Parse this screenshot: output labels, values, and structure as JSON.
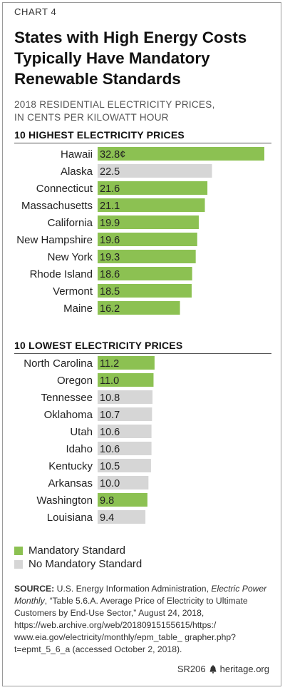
{
  "chart_label": "CHART 4",
  "title": "States with High Energy Costs Typically Have Mandatory Renewable Standards",
  "subtitle_line1": "2018 RESIDENTIAL ELECTRICITY PRICES,",
  "subtitle_line2": "IN CENTS PER KILOWATT HOUR",
  "colors": {
    "mandatory": "#8cc152",
    "none": "#d6d6d6"
  },
  "legend": [
    {
      "label": "Mandatory Standard",
      "color": "#8cc152"
    },
    {
      "label": "No Mandatory Standard",
      "color": "#d6d6d6"
    }
  ],
  "chart_data": [
    {
      "type": "bar",
      "orientation": "horizontal",
      "title": "10 HIGHEST ELECTRICITY PRICES",
      "categories": [
        "Hawaii",
        "Alaska",
        "Connecticut",
        "Massachusetts",
        "California",
        "New Hampshire",
        "New York",
        "Rhode Island",
        "Vermont",
        "Maine"
      ],
      "values": [
        32.8,
        22.5,
        21.6,
        21.1,
        19.9,
        19.6,
        19.3,
        18.6,
        18.5,
        16.2
      ],
      "value_labels": [
        "32.8¢",
        "22.5",
        "21.6",
        "21.1",
        "19.9",
        "19.6",
        "19.3",
        "18.6",
        "18.5",
        "16.2"
      ],
      "mandatory": [
        true,
        false,
        true,
        true,
        true,
        true,
        true,
        true,
        true,
        true
      ],
      "xlim": [
        0,
        32.8
      ]
    },
    {
      "type": "bar",
      "orientation": "horizontal",
      "title": "10 LOWEST ELECTRICITY PRICES",
      "categories": [
        "North Carolina",
        "Oregon",
        "Tennessee",
        "Oklahoma",
        "Utah",
        "Idaho",
        "Kentucky",
        "Arkansas",
        "Washington",
        "Louisiana"
      ],
      "values": [
        11.2,
        11.0,
        10.8,
        10.7,
        10.6,
        10.6,
        10.5,
        10.0,
        9.8,
        9.4
      ],
      "value_labels": [
        "11.2",
        "11.0",
        "10.8",
        "10.7",
        "10.6",
        "10.6",
        "10.5",
        "10.0",
        "9.8",
        "9.4"
      ],
      "mandatory": [
        true,
        true,
        false,
        false,
        false,
        false,
        false,
        false,
        true,
        false
      ],
      "xlim": [
        0,
        32.8
      ]
    }
  ],
  "source": {
    "label": "SOURCE:",
    "text_before": " U.S. Energy Information Administration, ",
    "publication": "Electric Power Monthly",
    "text_after": ", “Table 5.6.A. Average Price of Electricity to Ultimate Customers by End-Use Sector,” August 24, 2018, https://web.archive.org/web/20180915155615/https:/ www.eia.gov/electricity/monthly/epm_table_ grapher.php?t=epmt_5_6_a (accessed October 2, 2018)."
  },
  "footer": {
    "report_id": "SR206",
    "site": "heritage.org"
  }
}
